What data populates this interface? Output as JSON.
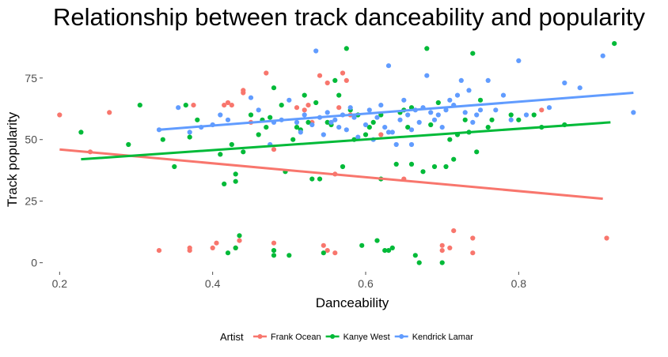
{
  "chart_data": {
    "type": "scatter",
    "title": "Relationship between track danceability and popularity",
    "xlabel": "Danceability",
    "ylabel": "Track popularity",
    "xlim": [
      0.18,
      0.96
    ],
    "ylim": [
      -3,
      90
    ],
    "x_ticks": [
      0.2,
      0.4,
      0.6,
      0.8
    ],
    "x_tick_labels": [
      "0.2",
      "0.4",
      "0.6",
      "0.8"
    ],
    "y_ticks": [
      0,
      25,
      50,
      75
    ],
    "y_tick_labels": [
      "0",
      "25",
      "50",
      "75"
    ],
    "grid": false,
    "legend": {
      "title": "Artist",
      "placement": "bottom"
    },
    "series": [
      {
        "name": "Frank Ocean",
        "color": "#F8766D",
        "trend": [
          [
            0.2,
            46
          ],
          [
            0.91,
            26
          ]
        ],
        "points": [
          [
            0.2,
            60
          ],
          [
            0.265,
            61
          ],
          [
            0.24,
            45
          ],
          [
            0.33,
            5
          ],
          [
            0.37,
            5
          ],
          [
            0.37,
            6
          ],
          [
            0.375,
            64
          ],
          [
            0.4,
            6
          ],
          [
            0.405,
            8
          ],
          [
            0.415,
            64
          ],
          [
            0.42,
            65
          ],
          [
            0.425,
            64
          ],
          [
            0.43,
            6
          ],
          [
            0.435,
            9
          ],
          [
            0.44,
            69
          ],
          [
            0.44,
            70
          ],
          [
            0.45,
            57
          ],
          [
            0.47,
            77
          ],
          [
            0.48,
            8
          ],
          [
            0.48,
            46
          ],
          [
            0.51,
            63
          ],
          [
            0.52,
            62
          ],
          [
            0.525,
            64
          ],
          [
            0.53,
            57
          ],
          [
            0.54,
            76
          ],
          [
            0.545,
            7
          ],
          [
            0.55,
            73
          ],
          [
            0.55,
            5
          ],
          [
            0.56,
            4
          ],
          [
            0.565,
            63
          ],
          [
            0.57,
            77
          ],
          [
            0.575,
            74
          ],
          [
            0.58,
            60
          ],
          [
            0.56,
            36
          ],
          [
            0.62,
            52
          ],
          [
            0.65,
            34
          ],
          [
            0.7,
            7
          ],
          [
            0.7,
            5
          ],
          [
            0.71,
            6
          ],
          [
            0.715,
            13
          ],
          [
            0.74,
            10
          ],
          [
            0.74,
            4
          ],
          [
            0.83,
            62
          ],
          [
            0.915,
            10
          ]
        ]
      },
      {
        "name": "Kanye West",
        "color": "#00BA38",
        "trend": [
          [
            0.228,
            42
          ],
          [
            0.92,
            57
          ]
        ],
        "points": [
          [
            0.228,
            53
          ],
          [
            0.29,
            48
          ],
          [
            0.305,
            64
          ],
          [
            0.335,
            50
          ],
          [
            0.35,
            39
          ],
          [
            0.365,
            64
          ],
          [
            0.37,
            51
          ],
          [
            0.38,
            58
          ],
          [
            0.41,
            44
          ],
          [
            0.415,
            32
          ],
          [
            0.42,
            4
          ],
          [
            0.425,
            48
          ],
          [
            0.43,
            36
          ],
          [
            0.43,
            6
          ],
          [
            0.43,
            33
          ],
          [
            0.435,
            11
          ],
          [
            0.44,
            45
          ],
          [
            0.45,
            60
          ],
          [
            0.46,
            52
          ],
          [
            0.465,
            58
          ],
          [
            0.47,
            55
          ],
          [
            0.475,
            59
          ],
          [
            0.48,
            5
          ],
          [
            0.48,
            3
          ],
          [
            0.48,
            71
          ],
          [
            0.49,
            64
          ],
          [
            0.495,
            37
          ],
          [
            0.5,
            3
          ],
          [
            0.505,
            50
          ],
          [
            0.51,
            55
          ],
          [
            0.515,
            54
          ],
          [
            0.52,
            68
          ],
          [
            0.525,
            57
          ],
          [
            0.53,
            34
          ],
          [
            0.535,
            65
          ],
          [
            0.54,
            34
          ],
          [
            0.545,
            4
          ],
          [
            0.55,
            57
          ],
          [
            0.555,
            56
          ],
          [
            0.56,
            74
          ],
          [
            0.565,
            68
          ],
          [
            0.57,
            39
          ],
          [
            0.575,
            87
          ],
          [
            0.58,
            62
          ],
          [
            0.585,
            50
          ],
          [
            0.59,
            60
          ],
          [
            0.595,
            7
          ],
          [
            0.6,
            52
          ],
          [
            0.605,
            55
          ],
          [
            0.61,
            57
          ],
          [
            0.615,
            9
          ],
          [
            0.62,
            60
          ],
          [
            0.625,
            5
          ],
          [
            0.63,
            5
          ],
          [
            0.635,
            6
          ],
          [
            0.64,
            40
          ],
          [
            0.645,
            61
          ],
          [
            0.65,
            62
          ],
          [
            0.655,
            55
          ],
          [
            0.66,
            63
          ],
          [
            0.665,
            3
          ],
          [
            0.67,
            0
          ],
          [
            0.675,
            37
          ],
          [
            0.68,
            87
          ],
          [
            0.685,
            56
          ],
          [
            0.69,
            39
          ],
          [
            0.695,
            65
          ],
          [
            0.7,
            0
          ],
          [
            0.705,
            39
          ],
          [
            0.71,
            50
          ],
          [
            0.715,
            42
          ],
          [
            0.72,
            52
          ],
          [
            0.73,
            58
          ],
          [
            0.735,
            53
          ],
          [
            0.74,
            85
          ],
          [
            0.745,
            45
          ],
          [
            0.75,
            66
          ],
          [
            0.76,
            55
          ],
          [
            0.765,
            58
          ],
          [
            0.79,
            60
          ],
          [
            0.8,
            58
          ],
          [
            0.82,
            60
          ],
          [
            0.83,
            55
          ],
          [
            0.86,
            56
          ],
          [
            0.925,
            89
          ],
          [
            0.62,
            34
          ],
          [
            0.66,
            40
          ]
        ]
      },
      {
        "name": "Kendrick Lamar",
        "color": "#619CFF",
        "trend": [
          [
            0.33,
            54
          ],
          [
            0.95,
            69
          ]
        ],
        "points": [
          [
            0.33,
            54
          ],
          [
            0.355,
            63
          ],
          [
            0.37,
            53
          ],
          [
            0.385,
            55
          ],
          [
            0.4,
            56
          ],
          [
            0.41,
            60
          ],
          [
            0.42,
            58
          ],
          [
            0.45,
            67
          ],
          [
            0.46,
            62
          ],
          [
            0.475,
            48
          ],
          [
            0.48,
            57
          ],
          [
            0.49,
            58
          ],
          [
            0.5,
            66
          ],
          [
            0.51,
            57
          ],
          [
            0.515,
            53
          ],
          [
            0.52,
            60
          ],
          [
            0.53,
            56
          ],
          [
            0.535,
            86
          ],
          [
            0.54,
            59
          ],
          [
            0.545,
            52
          ],
          [
            0.55,
            61
          ],
          [
            0.555,
            57
          ],
          [
            0.56,
            58
          ],
          [
            0.565,
            55
          ],
          [
            0.57,
            60
          ],
          [
            0.575,
            54
          ],
          [
            0.58,
            63
          ],
          [
            0.585,
            59
          ],
          [
            0.59,
            51
          ],
          [
            0.6,
            56
          ],
          [
            0.605,
            62
          ],
          [
            0.61,
            50
          ],
          [
            0.615,
            59
          ],
          [
            0.62,
            64
          ],
          [
            0.625,
            55
          ],
          [
            0.63,
            80
          ],
          [
            0.635,
            53
          ],
          [
            0.64,
            48
          ],
          [
            0.645,
            58
          ],
          [
            0.65,
            66
          ],
          [
            0.655,
            60
          ],
          [
            0.66,
            54
          ],
          [
            0.665,
            62
          ],
          [
            0.67,
            57
          ],
          [
            0.675,
            63
          ],
          [
            0.68,
            76
          ],
          [
            0.685,
            61
          ],
          [
            0.69,
            58
          ],
          [
            0.695,
            60
          ],
          [
            0.7,
            55
          ],
          [
            0.705,
            62
          ],
          [
            0.71,
            66
          ],
          [
            0.715,
            64
          ],
          [
            0.72,
            68
          ],
          [
            0.725,
            74
          ],
          [
            0.73,
            61
          ],
          [
            0.735,
            70
          ],
          [
            0.74,
            57
          ],
          [
            0.745,
            60
          ],
          [
            0.75,
            62
          ],
          [
            0.76,
            74
          ],
          [
            0.77,
            62
          ],
          [
            0.78,
            68
          ],
          [
            0.79,
            58
          ],
          [
            0.8,
            82
          ],
          [
            0.81,
            60
          ],
          [
            0.84,
            63
          ],
          [
            0.86,
            73
          ],
          [
            0.88,
            71
          ],
          [
            0.91,
            84
          ],
          [
            0.95,
            61
          ],
          [
            0.63,
            53
          ],
          [
            0.66,
            48
          ]
        ]
      }
    ]
  }
}
